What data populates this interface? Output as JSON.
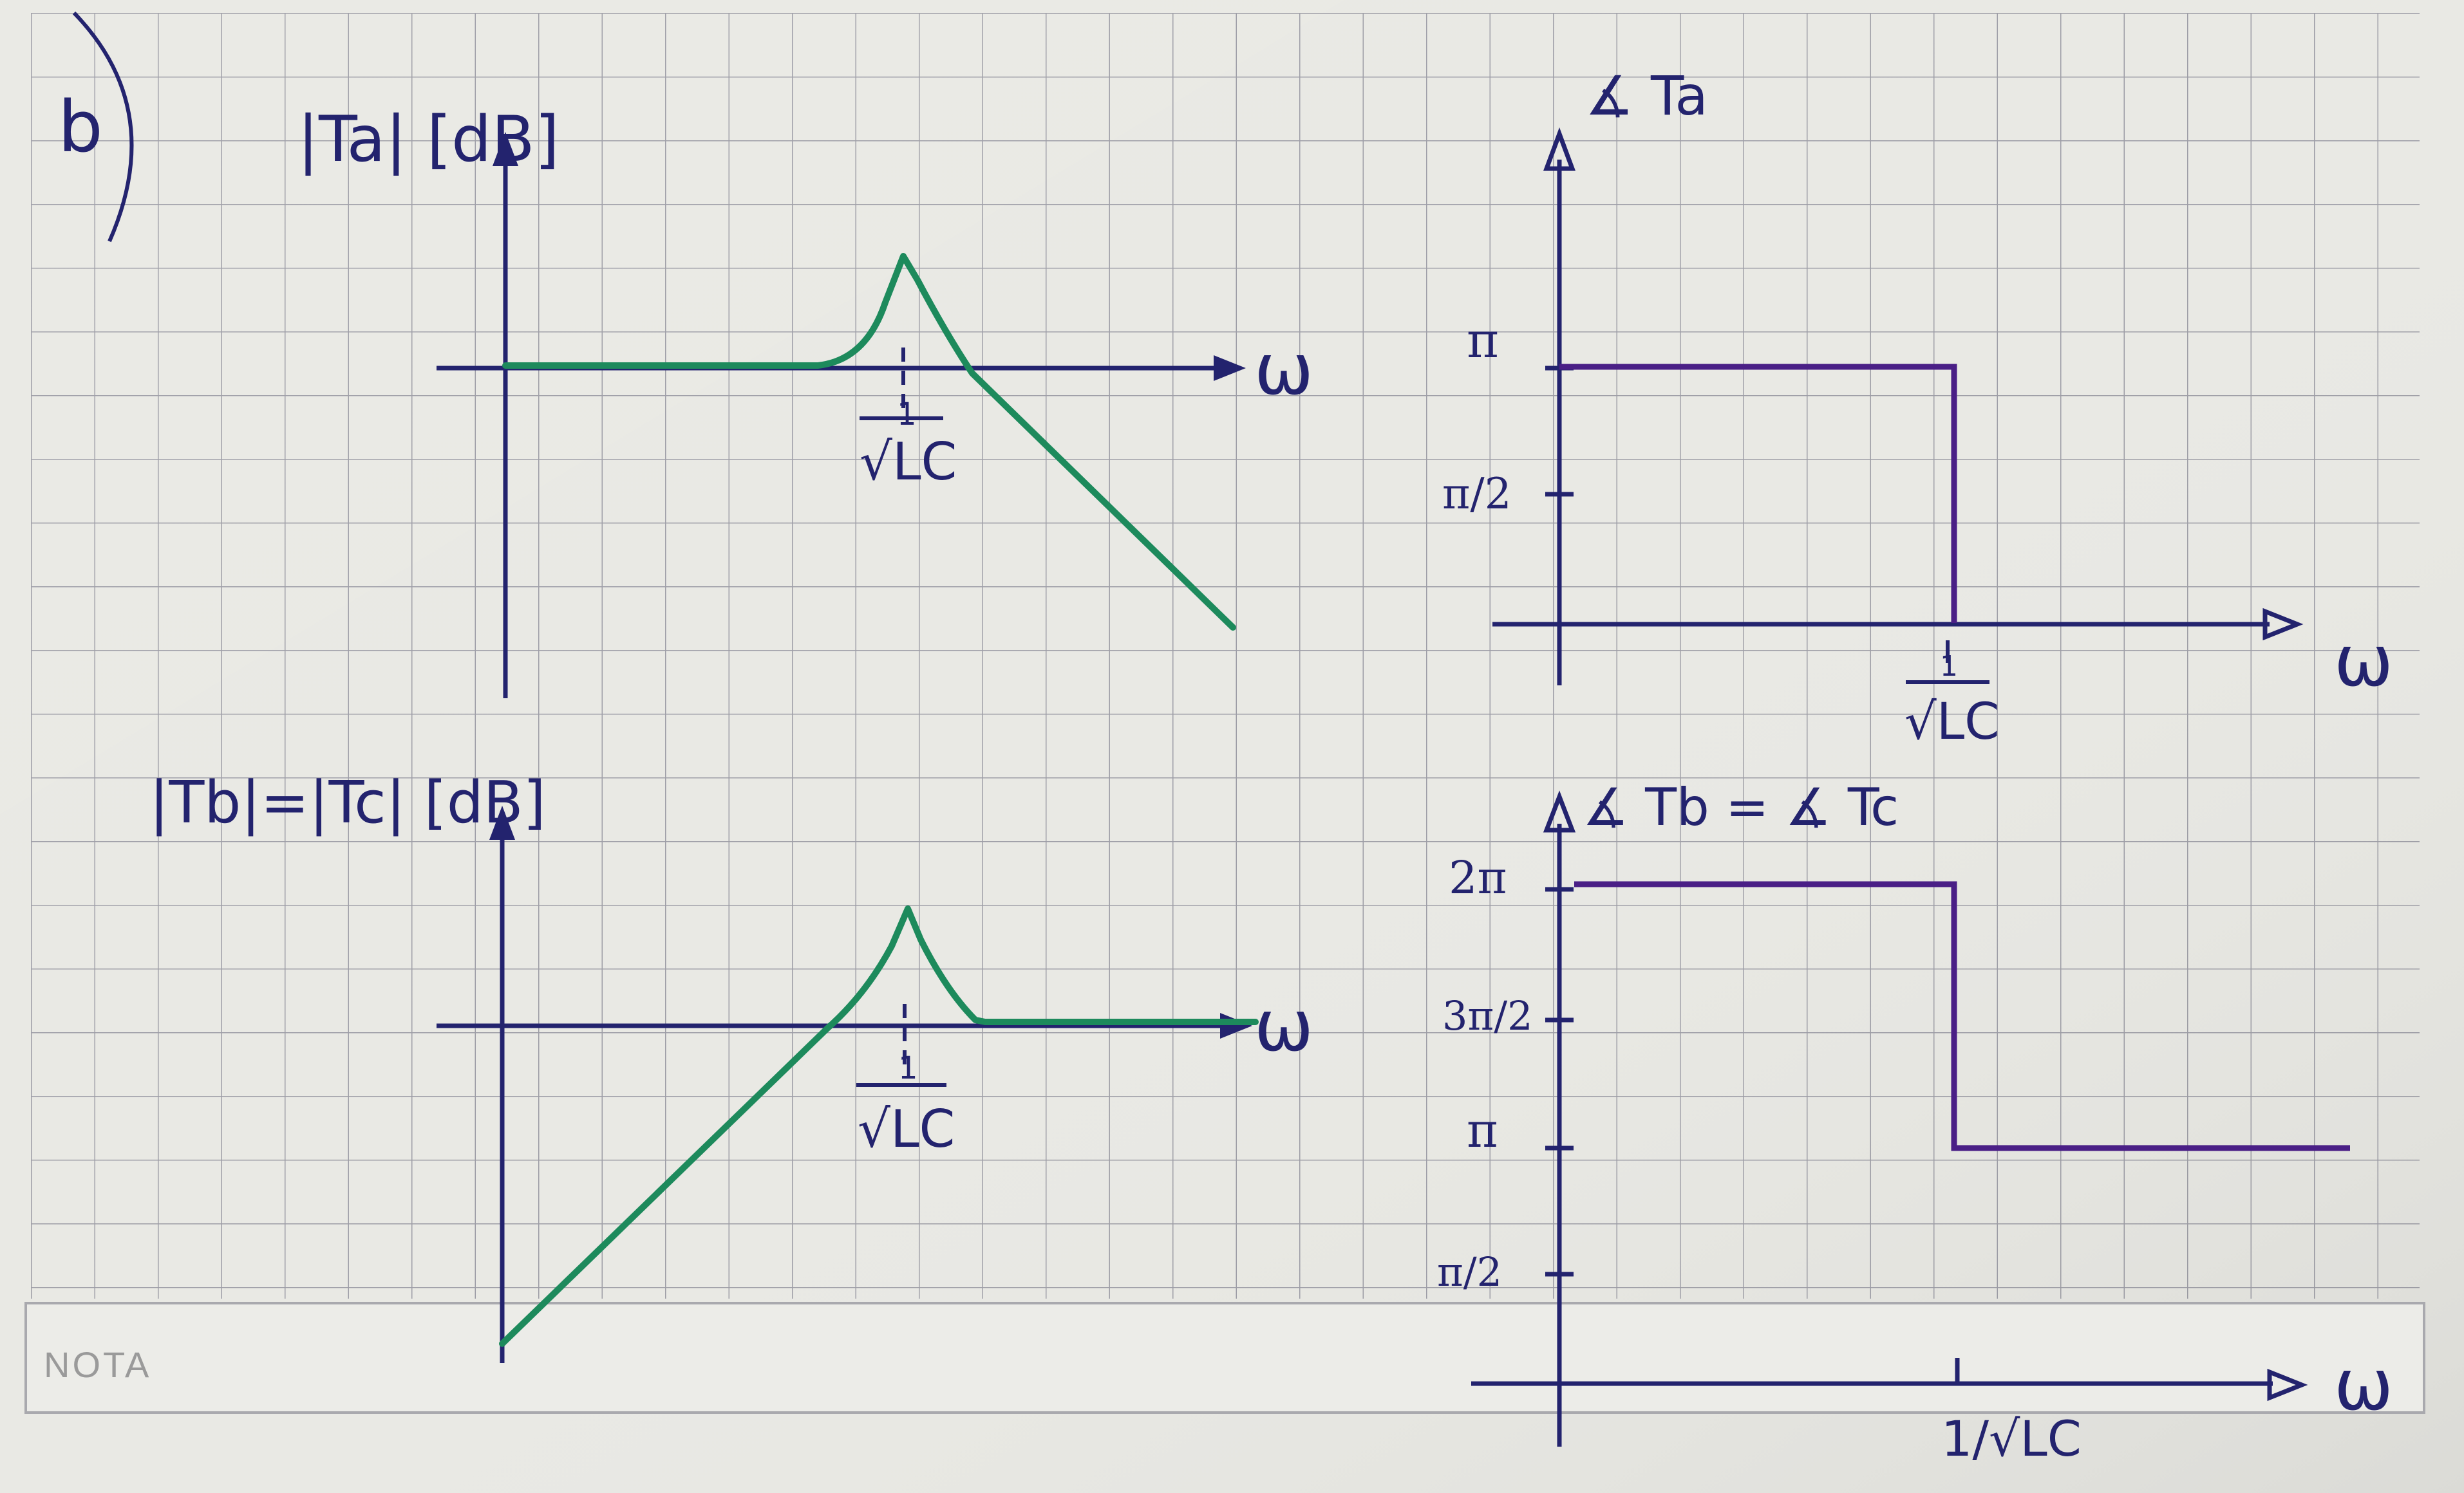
{
  "part_label": "b)",
  "nota_label": "NOTA",
  "colors": {
    "paper": "#e9e9e4",
    "grid": "#9d9da6",
    "axis_ink": "#23236e",
    "magnitude_curve": "#1d8a5c",
    "phase_curve": "#4a1f86"
  },
  "plots": {
    "ta_magnitude": {
      "title": "|Ta| [dB]",
      "x_axis_label": "ω",
      "tick_label_top": "1",
      "tick_label_bottom": "√LC",
      "curve_description": "flat at 0 dB, resonant peak at 1/√LC, then falling",
      "curve_color": "#1d8a5c"
    },
    "tb_magnitude": {
      "title": "|Tb|=|Tc| [dB]",
      "x_axis_label": "ω",
      "tick_label_top": "1",
      "tick_label_bottom": "√LC",
      "curve_description": "rising, resonant peak at 1/√LC, then flat at 0 dB",
      "curve_color": "#1d8a5c"
    },
    "ta_phase": {
      "title": "∡ Ta",
      "x_axis_label": "ω",
      "y_ticks": [
        "π",
        "π/2"
      ],
      "tick_label_top": "1",
      "tick_label_bottom": "√LC",
      "step_levels": {
        "before": "π",
        "after": "0"
      },
      "curve_color": "#4a1f86"
    },
    "tb_phase": {
      "title": "∡ Tb = ∡ Tc",
      "x_axis_label": "ω",
      "y_ticks": [
        "2π",
        "3π/2",
        "π",
        "π/2"
      ],
      "tick_label": "1/√LC",
      "step_levels": {
        "before": "2π",
        "after": "π"
      },
      "curve_color": "#4a1f86"
    }
  }
}
